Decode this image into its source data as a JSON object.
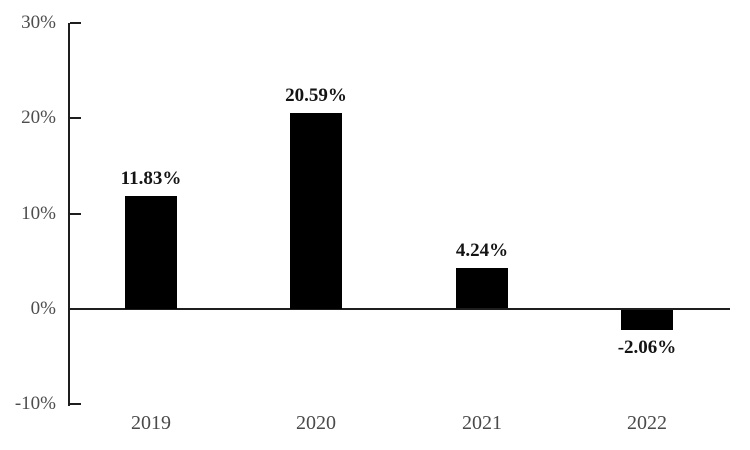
{
  "chart_data": {
    "type": "bar",
    "title": "",
    "xlabel": "",
    "ylabel": "",
    "categories": [
      "2019",
      "2020",
      "2021",
      "2022"
    ],
    "values": [
      11.83,
      20.59,
      4.24,
      -2.06
    ],
    "data_labels": [
      "11.83%",
      "20.59%",
      "4.24%",
      "-2.06%"
    ],
    "ylim": [
      -10,
      30
    ],
    "yticks": [
      {
        "value": 30,
        "label": "30%"
      },
      {
        "value": 20,
        "label": "20%"
      },
      {
        "value": 10,
        "label": "10%"
      },
      {
        "value": 0,
        "label": "0%"
      },
      {
        "value": -10,
        "label": "-10%"
      }
    ],
    "grid": false,
    "legend_position": "none",
    "colors": {
      "bar": "#000000",
      "axis": "#1e1e1e",
      "tick_label": "#4d4d4d",
      "data_label": "#141414",
      "background": "#ffffff"
    }
  }
}
